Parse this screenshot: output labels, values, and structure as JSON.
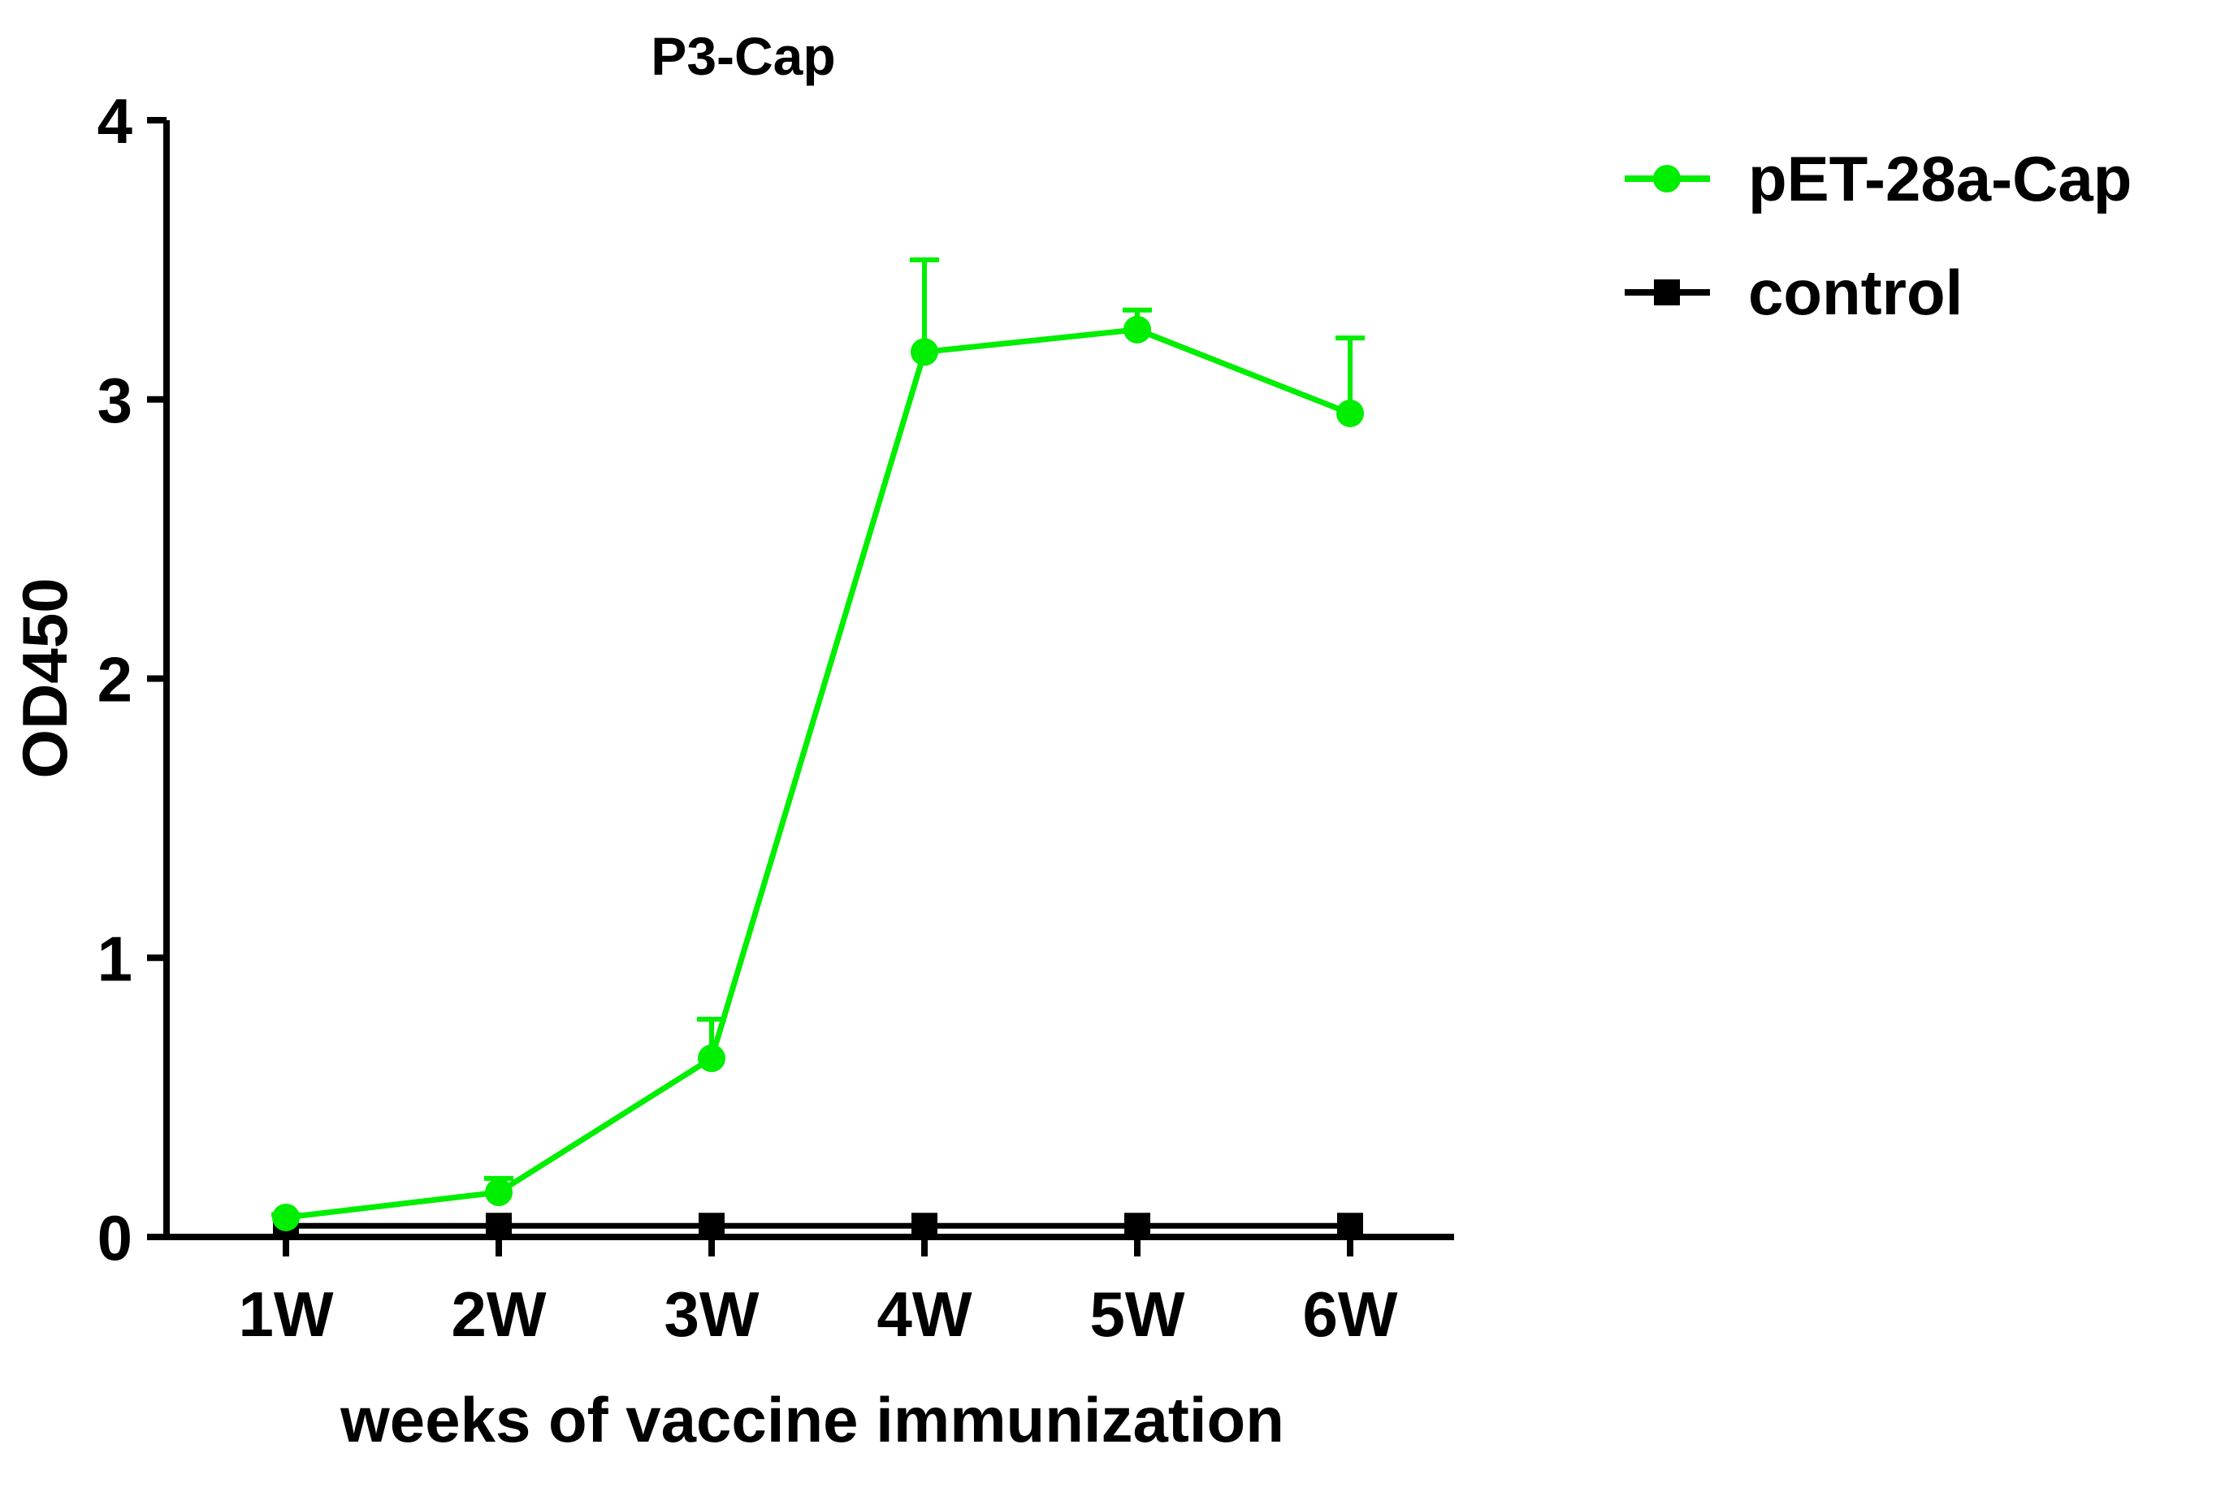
{
  "chart_data": {
    "type": "line",
    "title": "P3-Cap",
    "xlabel": "weeks of vaccine immunization",
    "ylabel": "OD450",
    "categories": [
      "1W",
      "2W",
      "3W",
      "4W",
      "5W",
      "6W"
    ],
    "ylim": [
      0,
      4
    ],
    "yticks": [
      "0",
      "1",
      "2",
      "3",
      "4"
    ],
    "grid": false,
    "legend_position": "top-right",
    "series": [
      {
        "name": "pET-28a-Cap",
        "color": "#00ee00",
        "marker": "circle",
        "values": [
          0.07,
          0.16,
          0.64,
          3.17,
          3.25,
          2.95
        ],
        "error_upper": [
          0.01,
          0.05,
          0.14,
          0.33,
          0.07,
          0.27
        ]
      },
      {
        "name": "control",
        "color": "#000000",
        "marker": "square",
        "values": [
          0.04,
          0.04,
          0.04,
          0.04,
          0.04,
          0.04
        ],
        "error_upper": [
          0,
          0,
          0,
          0,
          0,
          0
        ]
      }
    ]
  }
}
